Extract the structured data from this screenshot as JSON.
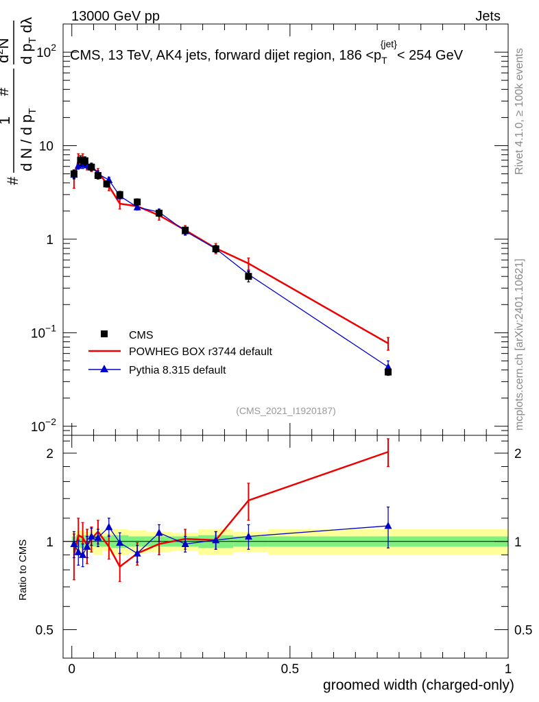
{
  "header": {
    "left": "13000 GeV pp",
    "right": "Jets"
  },
  "side_labels": {
    "rivet": "Rivet 4.1.0, ≥ 100k events",
    "mcplots": "mcplots.cern.ch [arXiv:2401.10621]"
  },
  "colors": {
    "data": "#000000",
    "powheg": "#ee0000",
    "pythia": "#0000cc",
    "band_inner": "#7ff07f",
    "band_outer": "#ffff99"
  },
  "chart_data": [
    {
      "type": "scatter",
      "panel": "main",
      "title": "CMS, 13 TeV, AK4 jets, forward dijet region, 186 <p_T^{jet}< 254 GeV",
      "title_parts": {
        "main": "CMS, 13 TeV, AK4 jets, forward dijet region, 186 <p",
        "sub": "T",
        "sup": "{jet}",
        "tail": "< 254 GeV"
      },
      "ylabel": "# 1/dN/dp_T #d²N/dp_T dλ",
      "ylabel_parts": {
        "hash": "#",
        "one": "1",
        "den": "d N / d p",
        "sub": "T",
        "d2n": "d",
        "d2n_sup": "2",
        "d2n_tail": "N",
        "dpt": "d p",
        "dlam": " dλ"
      },
      "yscale": "log",
      "ylim": [
        0.008,
        200
      ],
      "xlim": [
        -0.02,
        1.0
      ],
      "yticks": [
        {
          "v": 0.01,
          "base": "10",
          "exp": "−2"
        },
        {
          "v": 0.1,
          "base": "10",
          "exp": "−1"
        },
        {
          "v": 1,
          "base": "1",
          "exp": ""
        },
        {
          "v": 10,
          "base": "10",
          "exp": ""
        },
        {
          "v": 100,
          "base": "10",
          "exp": "2"
        }
      ],
      "watermark": "(CMS_2021_I1920187)",
      "legend_position": "lower-left",
      "series": [
        {
          "name": "CMS",
          "marker": "square",
          "x": [
            0.005,
            0.02,
            0.03,
            0.045,
            0.06,
            0.08,
            0.11,
            0.15,
            0.2,
            0.26,
            0.33,
            0.405,
            0.725
          ],
          "y": [
            5.0,
            7.0,
            6.9,
            5.9,
            4.8,
            3.9,
            3.0,
            2.5,
            1.9,
            1.25,
            0.79,
            0.4,
            0.038
          ],
          "err": [
            0.5,
            0.8,
            0.7,
            0.5,
            0.4,
            0.3,
            0.25,
            0.2,
            0.15,
            0.1,
            0.07,
            0.05,
            0.003
          ]
        },
        {
          "name": "POWHEG BOX r3744 default",
          "marker": "none",
          "x": [
            0.005,
            0.015,
            0.025,
            0.035,
            0.045,
            0.06,
            0.085,
            0.11,
            0.15,
            0.2,
            0.26,
            0.33,
            0.405,
            0.725
          ],
          "y": [
            4.5,
            7.0,
            7.2,
            6.4,
            5.9,
            5.2,
            3.7,
            2.4,
            2.25,
            1.8,
            1.25,
            0.8,
            0.55,
            0.077
          ],
          "err": [
            1.0,
            1.2,
            1.0,
            0.9,
            0.6,
            0.5,
            0.4,
            0.3,
            0.2,
            0.2,
            0.15,
            0.1,
            0.08,
            0.012
          ]
        },
        {
          "name": "Pythia 8.315 default",
          "marker": "triangle",
          "x": [
            0.005,
            0.015,
            0.025,
            0.035,
            0.045,
            0.06,
            0.085,
            0.11,
            0.15,
            0.2,
            0.26,
            0.33,
            0.405,
            0.725
          ],
          "y": [
            4.9,
            6.1,
            6.3,
            6.2,
            6.0,
            5.0,
            4.3,
            2.9,
            2.2,
            1.95,
            1.22,
            0.79,
            0.42,
            0.043
          ],
          "err": [
            0.5,
            0.5,
            0.6,
            0.5,
            0.5,
            0.4,
            0.3,
            0.2,
            0.15,
            0.15,
            0.1,
            0.06,
            0.04,
            0.007
          ]
        }
      ]
    },
    {
      "type": "line",
      "panel": "ratio",
      "xlabel": "groomed width (charged-only)",
      "ylabel": "Ratio to CMS",
      "ylim": [
        0.4,
        2.3
      ],
      "xlim": [
        -0.02,
        1.0
      ],
      "xticks": [
        0,
        0.5,
        1
      ],
      "xtick_labels": [
        "0",
        "0.5",
        "1"
      ],
      "yticks": [
        0.5,
        1,
        2
      ],
      "ytick_labels": [
        "0.5",
        "1",
        "2"
      ],
      "uncertainty_bands": {
        "bins": [
          0,
          0.01,
          0.02,
          0.03,
          0.04,
          0.05,
          0.07,
          0.09,
          0.13,
          0.17,
          0.23,
          0.29,
          0.37,
          0.45,
          1.0
        ],
        "inner": [
          0.04,
          0.05,
          0.05,
          0.05,
          0.04,
          0.04,
          0.04,
          0.05,
          0.04,
          0.04,
          0.04,
          0.05,
          0.04,
          0.04
        ],
        "outer": [
          0.08,
          0.09,
          0.09,
          0.08,
          0.08,
          0.1,
          0.07,
          0.1,
          0.09,
          0.08,
          0.07,
          0.1,
          0.08,
          0.1
        ]
      },
      "series": [
        {
          "name": "POWHEG BOX r3744 default",
          "x": [
            0.005,
            0.015,
            0.025,
            0.035,
            0.045,
            0.06,
            0.085,
            0.11,
            0.15,
            0.2,
            0.26,
            0.33,
            0.405,
            0.725
          ],
          "y": [
            0.9,
            1.05,
            1.03,
            0.97,
            1.02,
            1.08,
            0.96,
            0.82,
            0.91,
            0.98,
            1.02,
            1.01,
            1.38,
            2.02
          ],
          "err": [
            0.16,
            0.15,
            0.13,
            0.13,
            0.1,
            0.1,
            0.09,
            0.09,
            0.08,
            0.08,
            0.08,
            0.07,
            0.2,
            0.22
          ]
        },
        {
          "name": "Pythia 8.315 default",
          "x": [
            0.005,
            0.015,
            0.025,
            0.035,
            0.045,
            0.06,
            0.085,
            0.11,
            0.15,
            0.2,
            0.26,
            0.33,
            0.405,
            0.725
          ],
          "y": [
            0.98,
            0.92,
            0.9,
            0.96,
            1.04,
            1.03,
            1.12,
            0.99,
            0.91,
            1.07,
            0.98,
            1.01,
            1.04,
            1.13
          ],
          "err": [
            0.1,
            0.09,
            0.08,
            0.08,
            0.07,
            0.07,
            0.08,
            0.08,
            0.06,
            0.07,
            0.06,
            0.07,
            0.1,
            0.18
          ]
        }
      ]
    }
  ]
}
